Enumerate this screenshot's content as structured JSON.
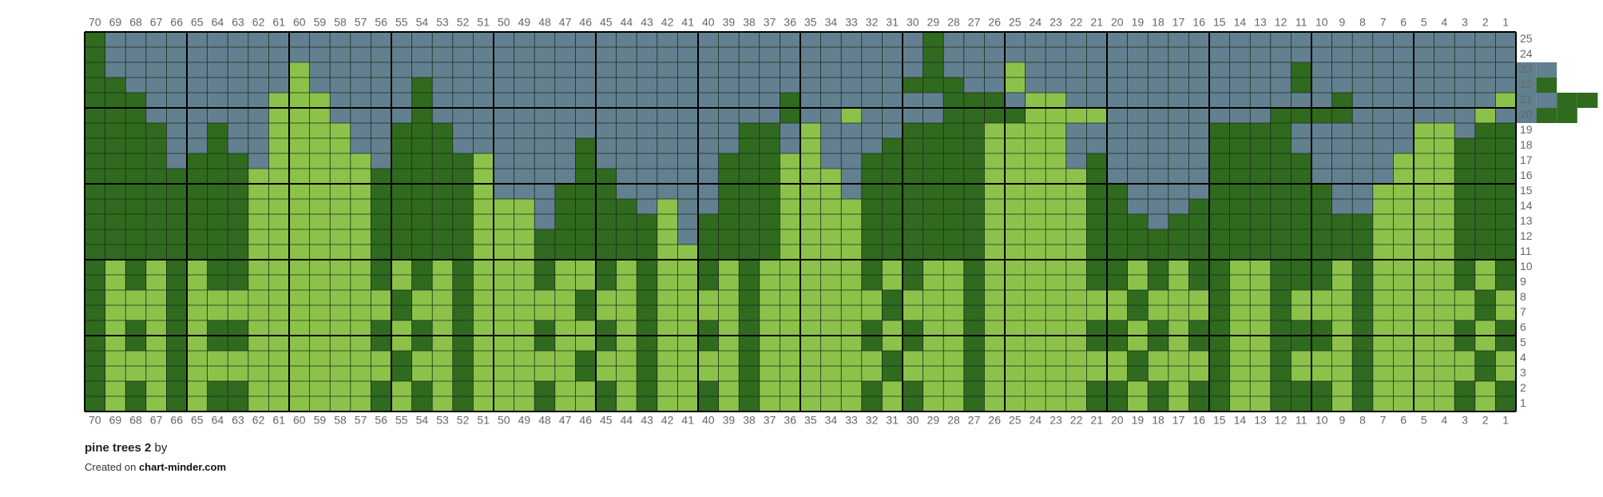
{
  "grid": {
    "columns": [
      70,
      69,
      68,
      67,
      66,
      65,
      64,
      63,
      62,
      61,
      60,
      59,
      58,
      57,
      56,
      55,
      54,
      53,
      52,
      51,
      50,
      49,
      48,
      47,
      46,
      45,
      44,
      43,
      42,
      41,
      40,
      39,
      38,
      37,
      36,
      35,
      34,
      33,
      32,
      31,
      30,
      29,
      28,
      27,
      26,
      25,
      24,
      23,
      22,
      21,
      20,
      19,
      18,
      17,
      16,
      15,
      14,
      13,
      12,
      11,
      10,
      9,
      8,
      7,
      6,
      5,
      4,
      3,
      2,
      1
    ],
    "rows": [
      25,
      24,
      23,
      22,
      21,
      20,
      19,
      18,
      17,
      16,
      15,
      14,
      13,
      12,
      11,
      10,
      9,
      8,
      7,
      6,
      5,
      4,
      3,
      2,
      1
    ],
    "palette": {
      "S": "#62808f",
      "D": "#2f6a1f",
      "L": "#8cc24a"
    },
    "cells": [
      "DSSSSSSSSSSSSSSSSSSSSSSSSSSSSSSSSSSSSSSSSDSSSSSSSSSSSSSSSSSSSSSSSSSSSS",
      "DSSSSSSSSSSSSSSSSSSSSSSSSSSSSSSSSSSSSSSSSDSSSSSSSSSSSSSSSSSSSSSSSSSSSS",
      "DSSSSSSSSSLSSSSSSSSSSSSSSSSSSSSSSSSSSSSSSDSSSLSSSSSSSSSSSSSDSSSSSSSSSSSS",
      "DDSSSSSSSSLSSSSSDSSSSSSSSSSSSSSSSSSSSSSSDDDSSLSSSSSSSSSSSSSDSSSSSSSSSSSD",
      "DDDSSSSSSLLLSSSSDSSSSSSSSSSSSSSSSSDSSSSSSSDDDSLLSSSSSSSSSSSSSDSSSSSSSLSSDD",
      "DDDSSSSSSLLLSSSSDSSSSSSSSSSSSSSSSSDSSLSSSSDDDDLLLLSSSSSSSSDDDDSSSSSSLSSDD",
      "DDDDSSDSSLLLLSSDDDSSSSSSSSSSSSSSDDSLSSSSDDDDLLLLSSSSSSSDDDDSSSSSSLLSDD",
      "DDDDSSDSSLLLLSSDDDSSSSSSDSSSSSSSDDSLSSSDDDDDLLLLSSSSSSSDDDDSSSSSSLLDDD",
      "DDDDSDDDSLLLLLSDDDDLSSSSDSSSSSSDDDLLSSDDDDDDLLLLSDSSSSSDDDDDSSSSLLLDDD",
      "DDDDDDDDLLLLLLDDDDDLSSSSDDSSSSSDDDLLLSDDDDDDLLLLLDSSSSSDDDDDSSSSLLLDDD",
      "DDDDDDDDLLLLLLDDDDDLSSSDDDSSSSSDDDLLLSDDDDDDLLLLLDDSSSSDDDDDDSSLLLLDDD",
      "DDDDDDDDLLLLLLDDDDDLLLSDDDDSLSSDDDLLLLDDDDDDLLLLLDDSSSDDDDDDDSSLLLLDDD",
      "DDDDDDDDLLLLLLDDDDDLLLSDDDDDLSDDDDLLLLDDDDDDLLLLLDDDSDDDDDDDDDDLLLLDDD",
      "DDDDDDDDLLLLLLDDDDDLLLDDDDDDLSDDDDLLLLDDDDDDLLLLLDDDDDDDDDDDDDDLLLLDDD",
      "DDDDDDDDLLLLLLDDDDDLLLDDDDDDLLDDDDLLLLDDDDDDLLLLLDDDDDDDDDDDDDDLLLLDDD",
      "DLDLDLDDLLLLLLDLDLDLLLDLLDLDLLDLDLLLLLDLDLLDLLLLLDDLDLDDLLDDDLDLLLLDLD",
      "DLDLDLDDLLLLLLDLDLDLLLDLLDLDLLDLDLLLLLDLDLLDLLLLLDDLDLDDLLDDDLDLLLLDLD",
      "DLLLDLLLLLLLLLLDLLDLLLLLDLLDLLLLDLLLLLLDLLLDLLLLLLLDLLLDLLDLLLDLLLLLDL",
      "DLLLDLLLLLLLLLLDLLDLLLLLDLLDLLLLDLLLLLLDLLLDLLLLLLLDLLLDLLDLLLDLLLLLDL",
      "DLDLDLDDLLLLLLDLDLDLLLDLLDLDLLDLDLLLLLDLDLLDLLLLLDDLDLDDLLDDDLDLLLLDLD",
      "DLDLDLDDLLLLLLDLDLDLLLDLLDLDLLDLDLLLLLDLDLLDLLLLLDDLDLDDLLDDDLDLLLLDLD",
      "DLLLDLLLLLLLLLLDLLDLLLLLDLLDLLLLDLLLLLLDLLLDLLLLLLLDLLLDLLDLLLDLLLLLDL",
      "DLLLDLLLLLLLLLLDLLDLLLLLDLLDLLLLDLLLLLLDLLLDLLLLLLLDLLLDLLDLLLDLLLLLDL",
      "DLDLDLDDLLLLLLDLDLDLLLDLLDLDLLDLDLLLLLDLDLLDLLLLLDDLDLDDLLDDDLDLLLLDLD",
      "DLDLDLDDLLLLLLDLDLDLLLDLLDLDLLDLDLLLLLDLDLLDLLLLLDDLDLDDLLDDDLDLLLLDLD"
    ]
  },
  "footer": {
    "title": "pine trees 2",
    "by": "by",
    "created_on": "Created on",
    "site": "chart-minder.com"
  }
}
